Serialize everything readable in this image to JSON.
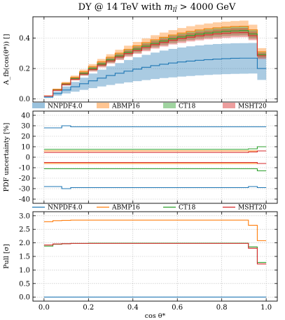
{
  "title": "DY @ 14 TeV with m_ll̄ > 4000 GeV",
  "colors": {
    "NNPDF4.0": "#1f77b4",
    "ABMP16": "#ff7f0e",
    "CT18": "#2ca02c",
    "MSHT20": "#d62728"
  },
  "legend": [
    "NNPDF4.0",
    "ABMP16",
    "CT18",
    "MSHT20"
  ],
  "chart_data": [
    {
      "type": "area",
      "panel": "top",
      "ylabel": "A_fb(cos(θ*)) []",
      "xlim": [
        -0.05,
        1.05
      ],
      "ylim": [
        -0.02,
        0.54
      ],
      "yticks": [
        0.0,
        0.2,
        0.4
      ],
      "grid": true,
      "legend_placement": "bottom",
      "x_edges": [
        0.0,
        0.04,
        0.08,
        0.12,
        0.16,
        0.2,
        0.24,
        0.28,
        0.32,
        0.36,
        0.4,
        0.44,
        0.48,
        0.52,
        0.56,
        0.6,
        0.64,
        0.68,
        0.72,
        0.76,
        0.8,
        0.84,
        0.88,
        0.92,
        0.96,
        1.0
      ],
      "series": [
        {
          "name": "NNPDF4.0",
          "style": "band",
          "values": [
            0.012,
            0.036,
            0.059,
            0.08,
            0.1,
            0.119,
            0.137,
            0.154,
            0.169,
            0.183,
            0.196,
            0.208,
            0.219,
            0.228,
            0.236,
            0.243,
            0.249,
            0.254,
            0.258,
            0.262,
            0.265,
            0.267,
            0.268,
            0.268,
            0.2
          ],
          "lower": [
            0.008,
            0.022,
            0.036,
            0.048,
            0.06,
            0.071,
            0.082,
            0.092,
            0.101,
            0.109,
            0.117,
            0.124,
            0.131,
            0.137,
            0.142,
            0.147,
            0.151,
            0.155,
            0.158,
            0.161,
            0.163,
            0.165,
            0.166,
            0.167,
            0.125
          ],
          "upper": [
            0.016,
            0.05,
            0.082,
            0.112,
            0.14,
            0.167,
            0.192,
            0.215,
            0.236,
            0.256,
            0.274,
            0.29,
            0.305,
            0.318,
            0.329,
            0.338,
            0.346,
            0.352,
            0.357,
            0.361,
            0.364,
            0.366,
            0.367,
            0.368,
            0.275
          ]
        },
        {
          "name": "ABMP16",
          "style": "band",
          "values": [
            0.02,
            0.063,
            0.104,
            0.143,
            0.179,
            0.213,
            0.245,
            0.274,
            0.301,
            0.326,
            0.349,
            0.37,
            0.389,
            0.405,
            0.42,
            0.433,
            0.444,
            0.453,
            0.461,
            0.467,
            0.472,
            0.476,
            0.478,
            0.454,
            0.31
          ],
          "lower": [
            0.018,
            0.058,
            0.096,
            0.132,
            0.165,
            0.197,
            0.227,
            0.254,
            0.279,
            0.302,
            0.323,
            0.342,
            0.359,
            0.374,
            0.388,
            0.4,
            0.41,
            0.418,
            0.426,
            0.431,
            0.436,
            0.44,
            0.441,
            0.42,
            0.286
          ],
          "upper": [
            0.022,
            0.068,
            0.112,
            0.154,
            0.193,
            0.229,
            0.263,
            0.294,
            0.323,
            0.35,
            0.375,
            0.398,
            0.419,
            0.436,
            0.452,
            0.466,
            0.478,
            0.488,
            0.496,
            0.503,
            0.508,
            0.512,
            0.515,
            0.488,
            0.334
          ]
        },
        {
          "name": "CT18",
          "style": "band",
          "values": [
            0.019,
            0.059,
            0.098,
            0.134,
            0.168,
            0.2,
            0.23,
            0.257,
            0.283,
            0.306,
            0.328,
            0.347,
            0.365,
            0.381,
            0.395,
            0.407,
            0.417,
            0.426,
            0.433,
            0.439,
            0.444,
            0.447,
            0.449,
            0.427,
            0.291
          ],
          "lower": [
            0.017,
            0.055,
            0.091,
            0.125,
            0.157,
            0.186,
            0.214,
            0.239,
            0.263,
            0.285,
            0.305,
            0.323,
            0.34,
            0.354,
            0.367,
            0.379,
            0.388,
            0.396,
            0.403,
            0.408,
            0.413,
            0.416,
            0.418,
            0.397,
            0.271
          ],
          "upper": [
            0.021,
            0.063,
            0.105,
            0.143,
            0.179,
            0.214,
            0.246,
            0.275,
            0.303,
            0.327,
            0.351,
            0.371,
            0.39,
            0.408,
            0.423,
            0.435,
            0.446,
            0.456,
            0.463,
            0.47,
            0.475,
            0.478,
            0.48,
            0.457,
            0.311
          ]
        },
        {
          "name": "MSHT20",
          "style": "band",
          "values": [
            0.019,
            0.057,
            0.095,
            0.13,
            0.163,
            0.194,
            0.223,
            0.25,
            0.275,
            0.298,
            0.319,
            0.338,
            0.356,
            0.371,
            0.385,
            0.396,
            0.406,
            0.414,
            0.421,
            0.427,
            0.431,
            0.435,
            0.436,
            0.415,
            0.283
          ],
          "lower": [
            0.017,
            0.053,
            0.088,
            0.121,
            0.152,
            0.18,
            0.207,
            0.233,
            0.256,
            0.277,
            0.297,
            0.314,
            0.331,
            0.345,
            0.358,
            0.368,
            0.378,
            0.385,
            0.392,
            0.397,
            0.401,
            0.405,
            0.406,
            0.386,
            0.263
          ],
          "upper": [
            0.021,
            0.061,
            0.102,
            0.139,
            0.174,
            0.208,
            0.239,
            0.267,
            0.294,
            0.319,
            0.341,
            0.362,
            0.381,
            0.397,
            0.412,
            0.424,
            0.434,
            0.443,
            0.45,
            0.457,
            0.461,
            0.465,
            0.466,
            0.444,
            0.303
          ]
        }
      ]
    },
    {
      "type": "line",
      "panel": "middle",
      "ylabel": "PDF uncertainty [%]",
      "xlim": [
        -0.05,
        1.05
      ],
      "ylim": [
        -44,
        44
      ],
      "yticks": [
        -40,
        -30,
        -20,
        -10,
        0,
        10,
        20,
        30,
        40
      ],
      "grid": true,
      "x_edges": [
        0.0,
        0.04,
        0.08,
        0.12,
        0.16,
        0.2,
        0.24,
        0.28,
        0.32,
        0.36,
        0.4,
        0.44,
        0.48,
        0.52,
        0.56,
        0.6,
        0.64,
        0.68,
        0.72,
        0.76,
        0.8,
        0.84,
        0.88,
        0.92,
        0.96,
        1.0
      ],
      "series": [
        {
          "name": "NNPDF4.0",
          "values": [
            28,
            28,
            30,
            29,
            29,
            29,
            29,
            29,
            29,
            29,
            29,
            29,
            29,
            29,
            29,
            29,
            29,
            29,
            29,
            29,
            29,
            29,
            29,
            29,
            29
          ]
        },
        {
          "name": "NNPDF4.0",
          "values": [
            -28,
            -28,
            -30,
            -29,
            -29,
            -29,
            -29,
            -29,
            -29,
            -29,
            -29,
            -29,
            -29,
            -29,
            -29,
            -29,
            -29,
            -29,
            -29,
            -29,
            -29,
            -29,
            -29,
            -28,
            -29
          ]
        },
        {
          "name": "ABMP16",
          "values": [
            6,
            6,
            6,
            6,
            6,
            6,
            6,
            6,
            6,
            6,
            6,
            6,
            6,
            6,
            6,
            6,
            6,
            6,
            6,
            6,
            6,
            6,
            6,
            6,
            6
          ]
        },
        {
          "name": "ABMP16",
          "values": [
            -6,
            -6,
            -6,
            -6,
            -6,
            -6,
            -6,
            -6,
            -6,
            -6,
            -6,
            -6,
            -6,
            -6,
            -6,
            -6,
            -6,
            -6,
            -6,
            -6,
            -6,
            -6,
            -6,
            -6,
            -6
          ]
        },
        {
          "name": "CT18",
          "values": [
            7.5,
            7.5,
            7.5,
            7.5,
            7.5,
            7.5,
            7.5,
            7.5,
            7.5,
            7.5,
            7.5,
            7.5,
            7.5,
            7.5,
            7.5,
            7.5,
            7.5,
            7.5,
            7.5,
            7.5,
            7.5,
            7.5,
            7.5,
            8,
            10
          ]
        },
        {
          "name": "CT18",
          "values": [
            -11,
            -11,
            -11,
            -11,
            -11,
            -11,
            -11,
            -11,
            -11,
            -11,
            -11,
            -11,
            -11,
            -11,
            -11,
            -11,
            -11,
            -11,
            -11,
            -11,
            -11,
            -11,
            -11,
            -11,
            -13
          ]
        },
        {
          "name": "MSHT20",
          "values": [
            4.5,
            4.5,
            4.5,
            4.5,
            4.5,
            4.5,
            4.5,
            4.5,
            4.5,
            4.5,
            4.5,
            4.5,
            4.5,
            4.5,
            4.5,
            4.5,
            4.5,
            4.5,
            4.5,
            4.5,
            4.5,
            4.5,
            4.5,
            5,
            6
          ]
        },
        {
          "name": "MSHT20",
          "values": [
            -5,
            -5,
            -5,
            -5,
            -5,
            -5,
            -5,
            -5,
            -5,
            -5,
            -5,
            -5,
            -5,
            -5,
            -5,
            -5,
            -5,
            -5,
            -5,
            -5,
            -5,
            -5,
            -5,
            -5,
            -6
          ]
        }
      ]
    },
    {
      "type": "line",
      "panel": "bottom",
      "ylabel": "Pull [σ]",
      "xlabel": "cos θ*",
      "xlim": [
        -0.05,
        1.05
      ],
      "ylim": [
        -0.15,
        3.15
      ],
      "yticks": [
        0.0,
        0.5,
        1.0,
        1.5,
        2.0,
        2.5,
        3.0
      ],
      "xticks": [
        0.0,
        0.2,
        0.4,
        0.6,
        0.8,
        1.0
      ],
      "grid": true,
      "x_edges": [
        0.0,
        0.04,
        0.08,
        0.12,
        0.16,
        0.2,
        0.24,
        0.28,
        0.32,
        0.36,
        0.4,
        0.44,
        0.48,
        0.52,
        0.56,
        0.6,
        0.64,
        0.68,
        0.72,
        0.76,
        0.8,
        0.84,
        0.88,
        0.92,
        0.96,
        1.0
      ],
      "series": [
        {
          "name": "NNPDF4.0",
          "values": [
            0,
            0,
            0,
            0,
            0,
            0,
            0,
            0,
            0,
            0,
            0,
            0,
            0,
            0,
            0,
            0,
            0,
            0,
            0,
            0,
            0,
            0,
            0,
            0,
            0
          ]
        },
        {
          "name": "ABMP16",
          "values": [
            2.78,
            2.82,
            2.83,
            2.84,
            2.84,
            2.84,
            2.84,
            2.84,
            2.84,
            2.84,
            2.84,
            2.84,
            2.84,
            2.84,
            2.84,
            2.84,
            2.84,
            2.84,
            2.84,
            2.84,
            2.84,
            2.84,
            2.84,
            2.65,
            2.08
          ]
        },
        {
          "name": "CT18",
          "values": [
            1.88,
            1.95,
            1.97,
            1.98,
            1.98,
            1.99,
            1.99,
            1.99,
            1.99,
            1.99,
            1.99,
            1.99,
            1.99,
            1.99,
            1.99,
            1.99,
            1.99,
            1.99,
            1.99,
            1.99,
            1.99,
            1.99,
            1.99,
            1.85,
            1.28
          ]
        },
        {
          "name": "MSHT20",
          "values": [
            1.92,
            1.96,
            1.97,
            1.98,
            1.98,
            1.98,
            1.98,
            1.98,
            1.98,
            1.98,
            1.98,
            1.98,
            1.98,
            1.98,
            1.98,
            1.98,
            1.98,
            1.98,
            1.98,
            1.98,
            1.98,
            1.98,
            1.98,
            1.8,
            1.22
          ]
        }
      ]
    }
  ]
}
